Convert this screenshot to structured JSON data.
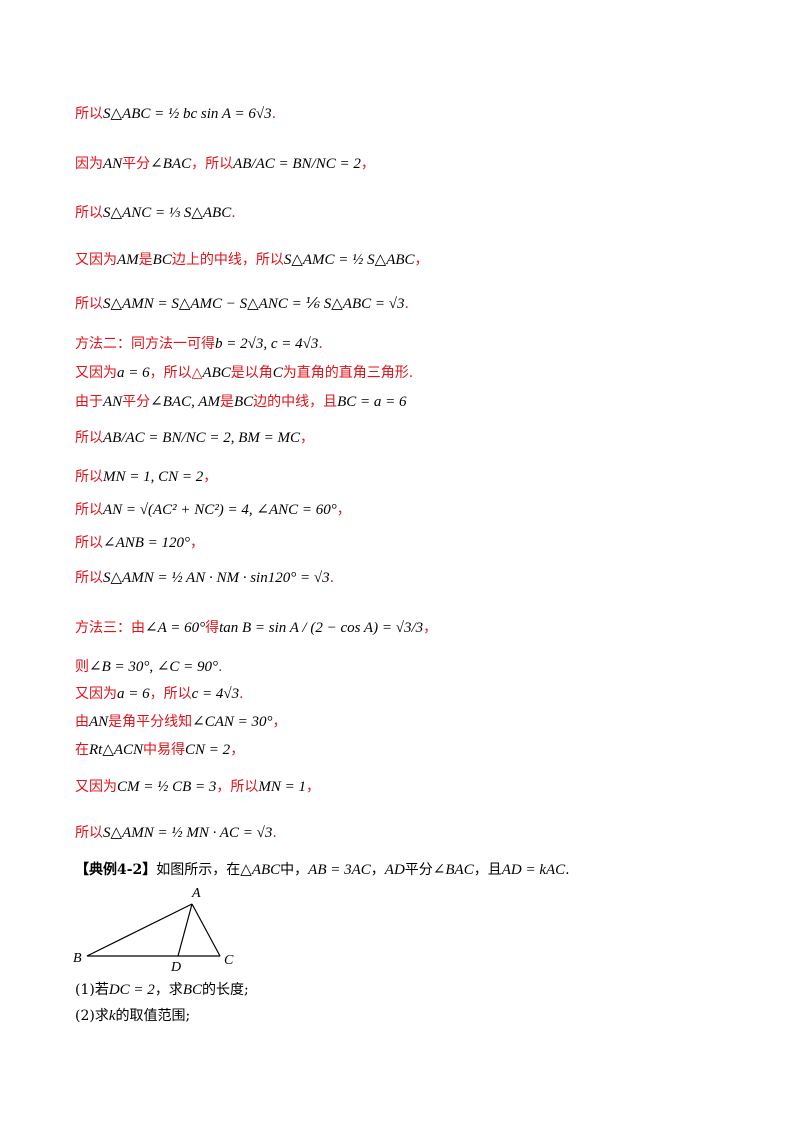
{
  "lines": [
    {
      "pre": "所以",
      "math": "S△ABC = ½ bc sin A = 6√3",
      "post": "."
    },
    {
      "pre": "因为",
      "math": "AN",
      "mid": "平分",
      "math2": "∠BAC",
      "mid2": "，所以",
      "math3": "AB/AC = BN/NC = 2",
      "post": "，"
    },
    {
      "pre": "所以",
      "math": "S△ANC = ⅓ S△ABC",
      "post": "."
    },
    {
      "pre": "又因为",
      "math": "AM",
      "mid": "是",
      "math2": "BC",
      "mid2": "边上的中线，所以",
      "math3": "S△AMC = ½ S△ABC",
      "post": "，"
    },
    {
      "pre": "所以",
      "math": "S△AMN = S△AMC − S△ANC = ⅙ S△ABC = √3",
      "post": "."
    },
    {
      "pre": "方法二：同方法一可得",
      "math": "b = 2√3, c = 4√3",
      "post": "."
    },
    {
      "pre": "又因为",
      "math": "a = 6",
      "mid": "，所以△",
      "math2": "ABC",
      "mid2": "是以角",
      "math3": "C",
      "post": "为直角的直角三角形."
    },
    {
      "pre": "由于",
      "math": "AN",
      "mid": "平分",
      "math2": "∠BAC, AM",
      "mid2": "是",
      "math3": "BC",
      "post": "边的中线，且",
      "math4": "BC = a = 6"
    },
    {
      "pre": "所以",
      "math": "AB/AC = BN/NC = 2, BM = MC",
      "post": "，"
    },
    {
      "pre": "所以",
      "math": "MN = 1, CN = 2",
      "post": "，"
    },
    {
      "pre": "所以",
      "math": "AN = √(AC² + NC²) = 4, ∠ANC = 60°",
      "post": "，"
    },
    {
      "pre": "所以",
      "math": "∠ANB = 120°",
      "post": "，"
    },
    {
      "pre": "所以",
      "math": "S△AMN = ½ AN · NM · sin120° = √3",
      "post": "."
    },
    {
      "pre": "方法三：由",
      "math": "∠A = 60°",
      "mid": "得",
      "math2": "tan B = sin A / (2 − cos A) = √3/3",
      "post": "，"
    },
    {
      "pre": "则",
      "math": "∠B = 30°, ∠C = 90°",
      "post": "."
    },
    {
      "pre": "又因为",
      "math": "a = 6",
      "mid": "，所以",
      "math2": "c = 4√3",
      "post": "."
    },
    {
      "pre": "由",
      "math": "AN",
      "mid": "是角平分线知",
      "math2": "∠CAN = 30°",
      "post": "，"
    },
    {
      "pre": "在",
      "math": "Rt△ACN",
      "mid": "中易得",
      "math2": "CN = 2",
      "post": "，"
    },
    {
      "pre": "又因为",
      "math": "CM = ½ CB = 3",
      "mid": "，所以",
      "math2": "MN = 1",
      "post": "，"
    },
    {
      "pre": "所以",
      "math": "S△AMN = ½ MN · AC = √3",
      "post": "."
    }
  ],
  "problem": {
    "tag": "【典例4-2】",
    "text1": "如图所示，在",
    "m1": "△ABC",
    "text2": "中，",
    "m2": "AB = 3AC",
    "text3": "，",
    "m3": "AD",
    "text4": "平分",
    "m4": "∠BAC",
    "text5": "，且",
    "m5": "AD = kAC",
    "text6": "."
  },
  "figure": {
    "labels": {
      "A": "A",
      "B": "B",
      "C": "C",
      "D": "D"
    }
  },
  "questions": [
    {
      "pre": "(1)若",
      "math": "DC = 2",
      "mid": "，求",
      "math2": "BC",
      "post": "的长度;"
    },
    {
      "pre": "(2)求",
      "math": "k",
      "post": "的取值范围;"
    }
  ]
}
